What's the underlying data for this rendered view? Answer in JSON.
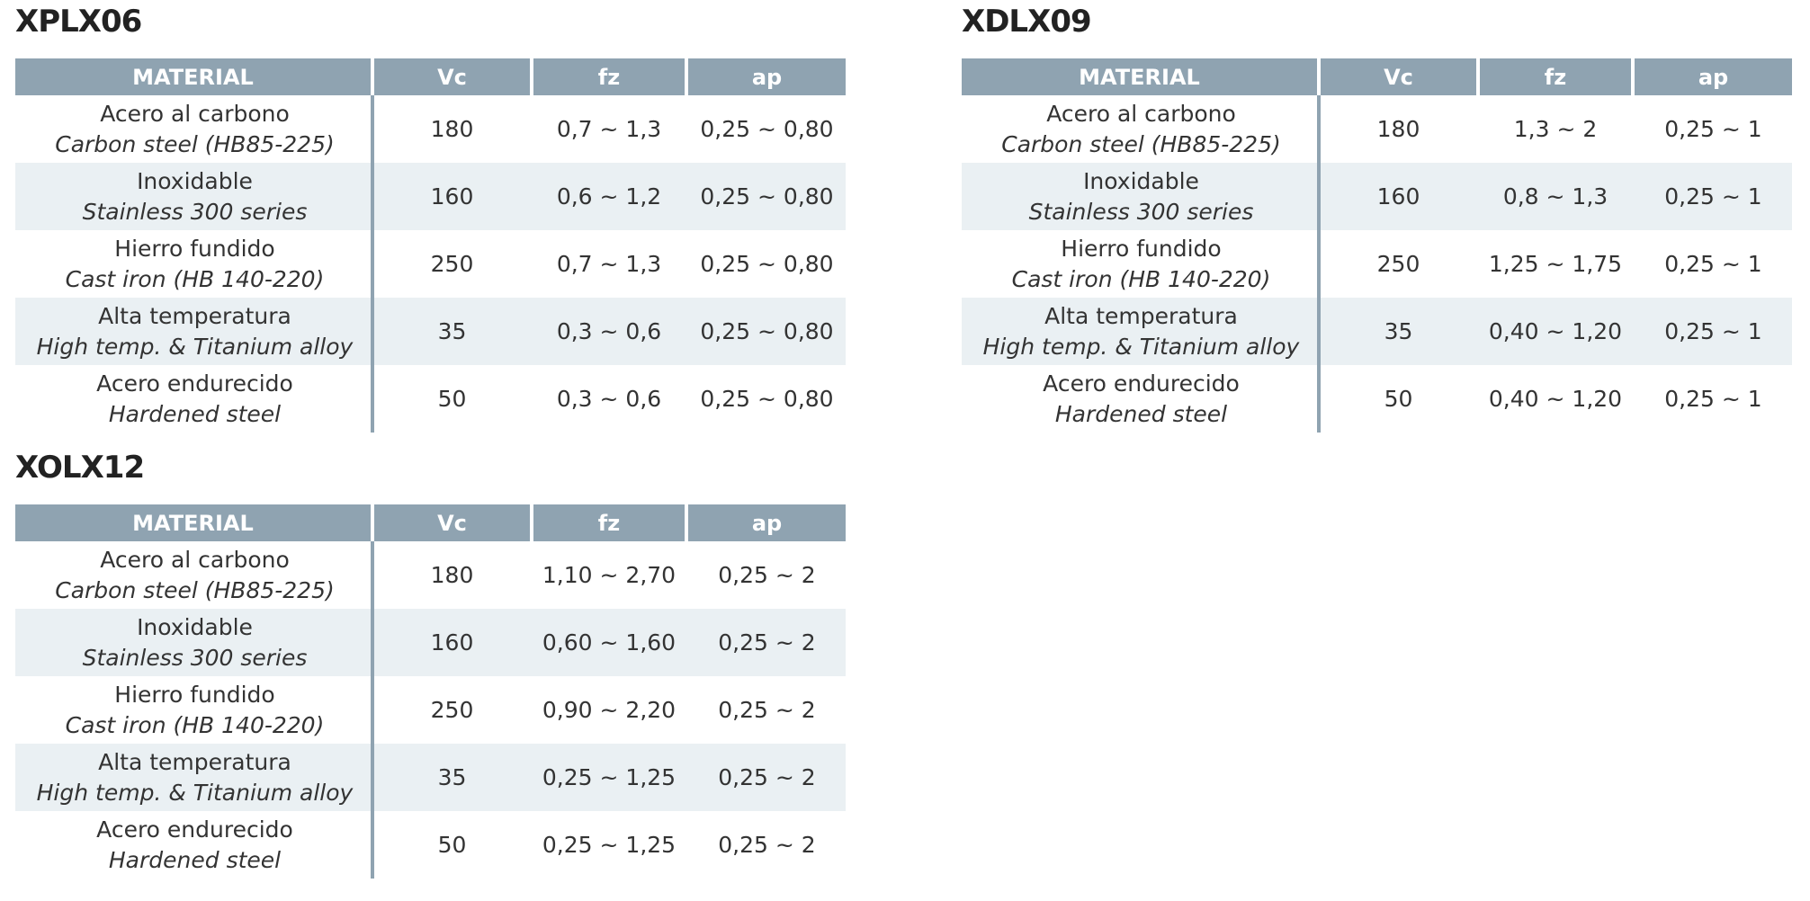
{
  "tables": [
    {
      "title": "XPLX06",
      "headers": [
        "MATERIAL",
        "Vc",
        "fz",
        "ap"
      ],
      "rows": [
        {
          "es": "Acero al carbono",
          "en": "Carbon steel (HB85-225)",
          "vc": 180,
          "fz": "0,7 ~ 1,3",
          "ap": "0,25 ~ 0,80"
        },
        {
          "es": "Inoxidable",
          "en": "Stainless 300 series",
          "vc": 160,
          "fz": "0,6 ~ 1,2",
          "ap": "0,25 ~ 0,80"
        },
        {
          "es": "Hierro fundido",
          "en": "Cast iron (HB 140-220)",
          "vc": 250,
          "fz": "0,7 ~ 1,3",
          "ap": "0,25 ~ 0,80"
        },
        {
          "es": "Alta temperatura",
          "en": "High temp. & Titanium alloy",
          "vc": 35,
          "fz": "0,3 ~ 0,6",
          "ap": "0,25 ~ 0,80"
        },
        {
          "es": "Acero endurecido",
          "en": "Hardened steel",
          "vc": 50,
          "fz": "0,3 ~ 0,6",
          "ap": "0,25 ~ 0,80"
        }
      ]
    },
    {
      "title": "XDLX09",
      "headers": [
        "MATERIAL",
        "Vc",
        "fz",
        "ap"
      ],
      "rows": [
        {
          "es": "Acero al carbono",
          "en": "Carbon steel (HB85-225)",
          "vc": 180,
          "fz": "1,3 ~ 2",
          "ap": "0,25 ~ 1"
        },
        {
          "es": "Inoxidable",
          "en": "Stainless 300 series",
          "vc": 160,
          "fz": "0,8 ~ 1,3",
          "ap": "0,25 ~ 1"
        },
        {
          "es": "Hierro fundido",
          "en": "Cast iron (HB 140-220)",
          "vc": 250,
          "fz": "1,25 ~ 1,75",
          "ap": "0,25 ~ 1"
        },
        {
          "es": "Alta temperatura",
          "en": "High temp. & Titanium alloy",
          "vc": 35,
          "fz": "0,40 ~ 1,20",
          "ap": "0,25 ~ 1"
        },
        {
          "es": "Acero endurecido",
          "en": "Hardened steel",
          "vc": 50,
          "fz": "0,40 ~ 1,20",
          "ap": "0,25 ~ 1"
        }
      ]
    },
    {
      "title": "XOLX12",
      "headers": [
        "MATERIAL",
        "Vc",
        "fz",
        "ap"
      ],
      "rows": [
        {
          "es": "Acero al carbono",
          "en": "Carbon steel (HB85-225)",
          "vc": 180,
          "fz": "1,10 ~ 2,70",
          "ap": "0,25 ~ 2"
        },
        {
          "es": "Inoxidable",
          "en": "Stainless 300 series",
          "vc": 160,
          "fz": "0,60 ~ 1,60",
          "ap": "0,25 ~ 2"
        },
        {
          "es": "Hierro fundido",
          "en": "Cast iron (HB 140-220)",
          "vc": 250,
          "fz": "0,90 ~ 2,20",
          "ap": "0,25 ~ 2"
        },
        {
          "es": "Alta temperatura",
          "en": "High temp. & Titanium alloy",
          "vc": 35,
          "fz": "0,25 ~ 1,25",
          "ap": "0,25 ~ 2"
        },
        {
          "es": "Acero endurecido",
          "en": "Hardened steel",
          "vc": 50,
          "fz": "0,25 ~ 1,25",
          "ap": "0,25 ~ 2"
        }
      ]
    }
  ]
}
